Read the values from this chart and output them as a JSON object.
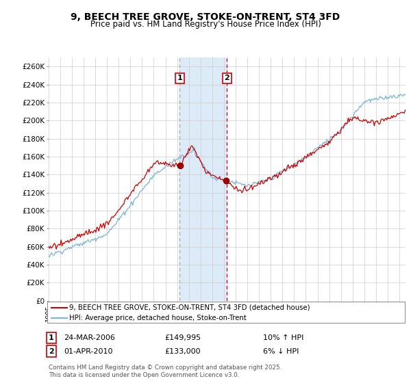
{
  "title": "9, BEECH TREE GROVE, STOKE-ON-TRENT, ST4 3FD",
  "subtitle": "Price paid vs. HM Land Registry's House Price Index (HPI)",
  "xlim_start": 1995.0,
  "xlim_end": 2025.5,
  "ylim": [
    0,
    270000
  ],
  "yticks": [
    0,
    20000,
    40000,
    60000,
    80000,
    100000,
    120000,
    140000,
    160000,
    180000,
    200000,
    220000,
    240000,
    260000
  ],
  "ytick_labels": [
    "£0",
    "£20K",
    "£40K",
    "£60K",
    "£80K",
    "£100K",
    "£120K",
    "£140K",
    "£160K",
    "£180K",
    "£200K",
    "£220K",
    "£240K",
    "£260K"
  ],
  "transaction1_date": 2006.22,
  "transaction1_price": 149995,
  "transaction2_date": 2010.25,
  "transaction2_price": 133000,
  "shaded_region_color": "#ddeaf7",
  "vline1_color": "#aaaaaa",
  "vline2_color": "#cc0000",
  "legend_label_red": "9, BEECH TREE GROVE, STOKE-ON-TRENT, ST4 3FD (detached house)",
  "legend_label_blue": "HPI: Average price, detached house, Stoke-on-Trent",
  "red_line_color": "#cc0000",
  "blue_line_color": "#7ab4d8",
  "background_color": "#ffffff",
  "grid_color": "#cccccc",
  "footer_text": "Contains HM Land Registry data © Crown copyright and database right 2025.\nThis data is licensed under the Open Government Licence v3.0."
}
